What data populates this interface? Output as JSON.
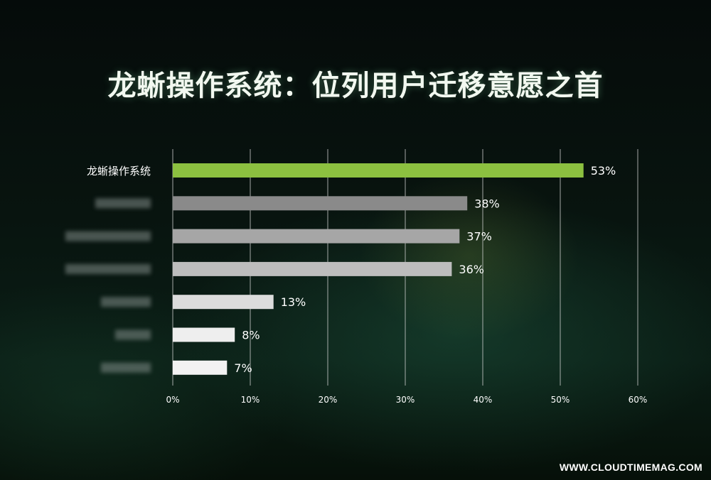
{
  "title": "龙蜥操作系统：位列用户迁移意愿之首",
  "watermark": "WWW.CLOUDTIMEMAG.COM",
  "colors": {
    "highlight": "#8cc040",
    "bar_shades": [
      "#8cc040",
      "#8a8a8a",
      "#a6a6a6",
      "#bdbdbd",
      "#dcdcdc",
      "#eeeeee",
      "#f2f2f2"
    ]
  },
  "chart_data": {
    "type": "bar",
    "orientation": "horizontal",
    "categories": [
      "龙蜥操作系统",
      "",
      "",
      "",
      "",
      "",
      ""
    ],
    "values": [
      53,
      38,
      37,
      36,
      13,
      8,
      7
    ],
    "value_labels": [
      "53%",
      "38%",
      "37%",
      "36%",
      "13%",
      "8%",
      "7%"
    ],
    "obscured_labels": [
      false,
      true,
      true,
      true,
      true,
      true,
      true
    ],
    "x_ticks": [
      "0%",
      "10%",
      "20%",
      "30%",
      "40%",
      "50%",
      "60%"
    ],
    "xlim": [
      0,
      60
    ],
    "grid": true,
    "legend": "none"
  }
}
